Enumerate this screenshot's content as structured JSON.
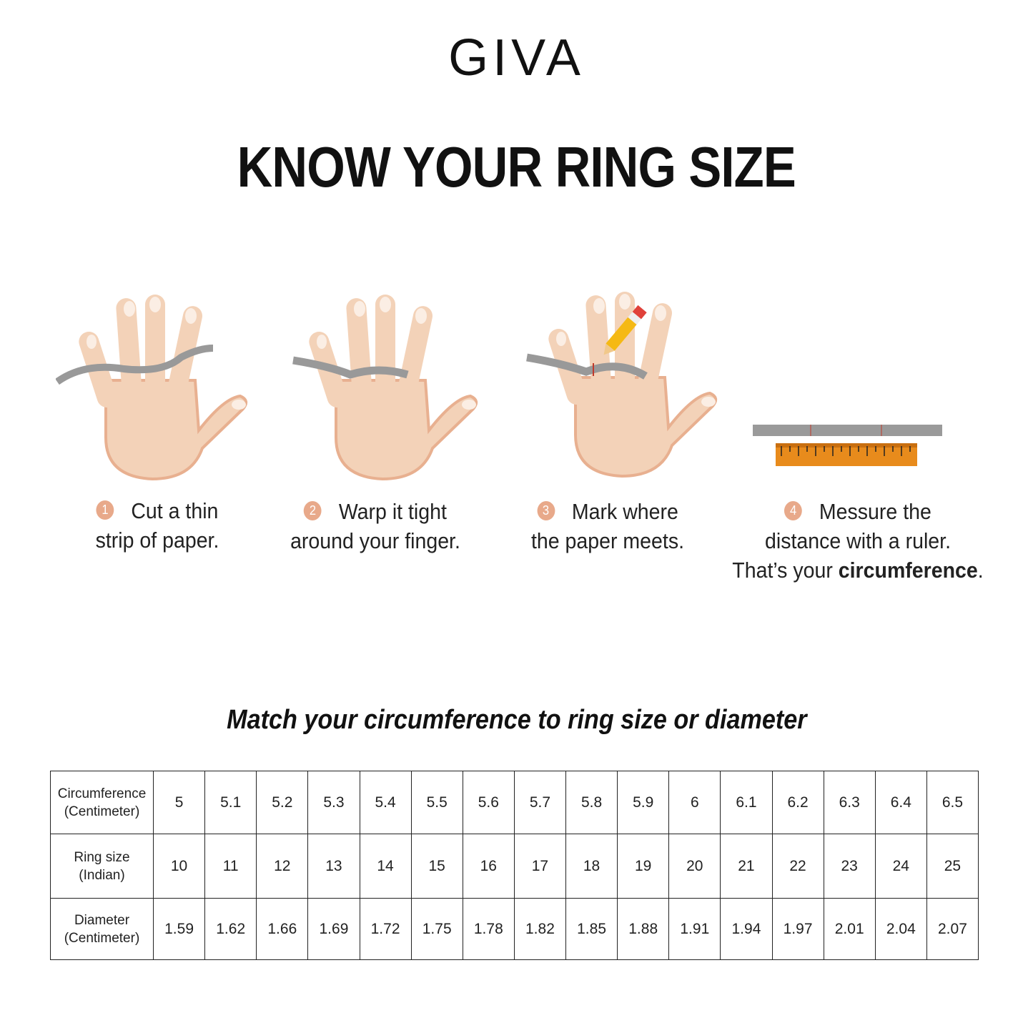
{
  "brand": {
    "logo": "GIVA"
  },
  "title": "KNOW YOUR RING SIZE",
  "steps": [
    {
      "number": "1",
      "line1": "Cut a thin",
      "line2": "strip of paper.",
      "icon": "hand-with-paper-strip"
    },
    {
      "number": "2",
      "line1": "Warp it tight",
      "line2": "around your finger.",
      "icon": "hand-paper-wrapped"
    },
    {
      "number": "3",
      "line1": "Mark where",
      "line2": "the paper meets.",
      "icon": "hand-with-pencil-mark"
    },
    {
      "number": "4",
      "line1": "Messure the",
      "line2": "distance with a ruler.",
      "line3_prefix": "That’s your ",
      "line3_bold": "circumference",
      "line3_suffix": ".",
      "icon": "paper-strip-and-ruler"
    }
  ],
  "subtitle": "Match your circumference to ring size or diameter",
  "table": {
    "rows": [
      {
        "header1": "Circumference",
        "header2": "(Centimeter)",
        "values": [
          "5",
          "5.1",
          "5.2",
          "5.3",
          "5.4",
          "5.5",
          "5.6",
          "5.7",
          "5.8",
          "5.9",
          "6",
          "6.1",
          "6.2",
          "6.3",
          "6.4",
          "6.5"
        ]
      },
      {
        "header1": "Ring size",
        "header2": "(Indian)",
        "values": [
          "10",
          "11",
          "12",
          "13",
          "14",
          "15",
          "16",
          "17",
          "18",
          "19",
          "20",
          "21",
          "22",
          "23",
          "24",
          "25"
        ]
      },
      {
        "header1": "Diameter",
        "header2": "(Centimeter)",
        "values": [
          "1.59",
          "1.62",
          "1.66",
          "1.69",
          "1.72",
          "1.75",
          "1.78",
          "1.82",
          "1.85",
          "1.88",
          "1.91",
          "1.94",
          "1.97",
          "2.01",
          "2.04",
          "2.07"
        ]
      }
    ]
  },
  "colors": {
    "skin": "#f3d2b8",
    "skin_shadow": "#e8b090",
    "paper": "#9a9a9a",
    "ruler": "#e88b1c",
    "step_number": "#e8a98a"
  }
}
